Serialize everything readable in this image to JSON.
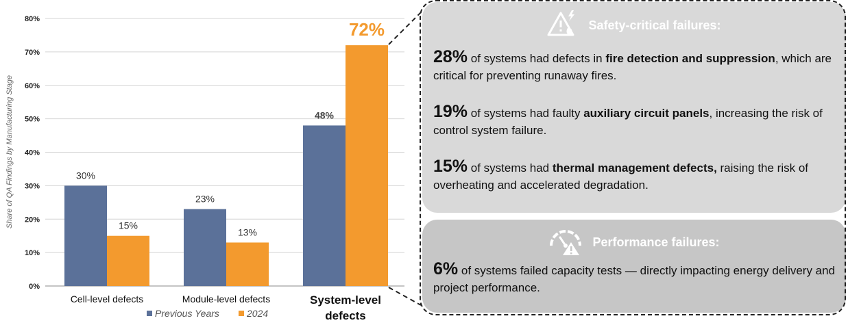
{
  "chart_data": {
    "type": "bar",
    "categories": [
      "Cell-level defects",
      "Module-level defects",
      "System-level defects"
    ],
    "series": [
      {
        "name": "Previous Years",
        "color": "#5b7199",
        "values": [
          30,
          23,
          48
        ]
      },
      {
        "name": "2024",
        "color": "#f39a2e",
        "values": [
          15,
          13,
          72
        ]
      }
    ],
    "data_labels": [
      [
        "30%",
        "23%",
        "48%"
      ],
      [
        "15%",
        "13%",
        "72%"
      ]
    ],
    "ylabel": "Share of QA Findings by Manufacturing Stage",
    "ylim": [
      0,
      80
    ],
    "yticks": [
      "0%",
      "10%",
      "20%",
      "30%",
      "40%",
      "50%",
      "60%",
      "70%",
      "80%"
    ],
    "grid": true,
    "legend": "bottom"
  },
  "callout": {
    "safety": {
      "title": "Safety-critical failures:",
      "icon": "warning-fire-icon",
      "items": [
        {
          "pct": "28%",
          "pre": " of systems had defects in ",
          "bold": "fire detection and suppression",
          "post": ", which are critical for preventing runaway fires."
        },
        {
          "pct": "19%",
          "pre": " of systems had faulty ",
          "bold": "auxiliary circuit panels",
          "post": ", increasing the risk of control system failure."
        },
        {
          "pct": "15%",
          "pre": " of systems had ",
          "bold": "thermal management defects,",
          "post": " raising the risk of overheating and accelerated degradation."
        }
      ]
    },
    "performance": {
      "title": "Performance failures:",
      "icon": "gauge-warning-icon",
      "items": [
        {
          "pct": "6%",
          "pre": " of systems failed capacity tests — directly impacting energy delivery and project performance.",
          "bold": "",
          "post": ""
        }
      ]
    }
  }
}
